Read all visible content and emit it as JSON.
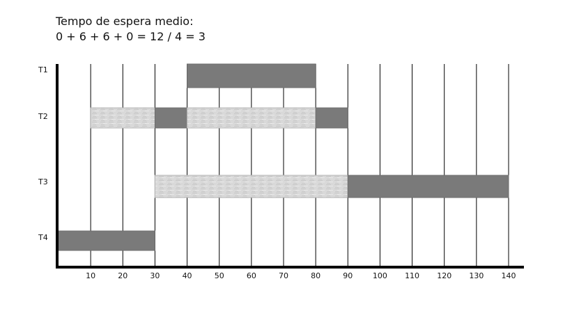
{
  "header": {
    "line1": "Tempo de espera medio:",
    "line2": "0 + 6 + 6 + 0 = 12 / 4 = 3"
  },
  "chart_data": {
    "type": "gantt",
    "x_ticks": [
      10,
      20,
      30,
      40,
      50,
      60,
      70,
      80,
      90,
      100,
      110,
      120,
      130,
      140
    ],
    "xlim": [
      0,
      140
    ],
    "rows": [
      "T1",
      "T2",
      "T3",
      "T4"
    ],
    "legend": "none",
    "colors": {
      "running": "#7a7a7a",
      "waiting": "#d6d6d6",
      "grid": "#000000"
    },
    "bars": [
      {
        "row": "T1",
        "start": 40,
        "end": 80,
        "state": "running"
      },
      {
        "row": "T2",
        "start": 10,
        "end": 30,
        "state": "waiting"
      },
      {
        "row": "T2",
        "start": 30,
        "end": 40,
        "state": "running"
      },
      {
        "row": "T2",
        "start": 40,
        "end": 80,
        "state": "waiting"
      },
      {
        "row": "T2",
        "start": 80,
        "end": 90,
        "state": "running"
      },
      {
        "row": "T3",
        "start": 30,
        "end": 90,
        "state": "waiting"
      },
      {
        "row": "T3",
        "start": 90,
        "end": 140,
        "state": "running"
      },
      {
        "row": "T4",
        "start": 0,
        "end": 30,
        "state": "running"
      }
    ]
  }
}
